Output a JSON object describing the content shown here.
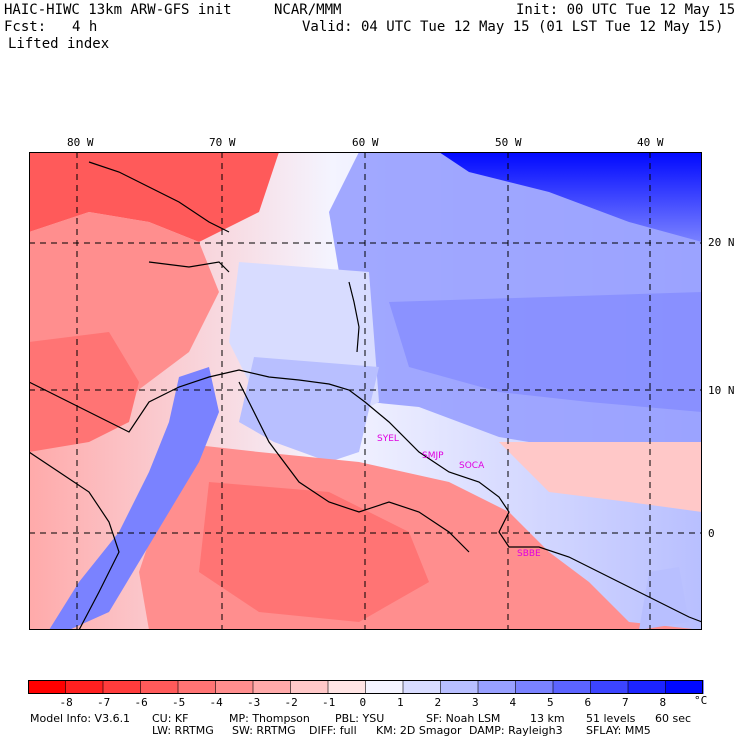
{
  "header": {
    "title": "HAIC-HIWC 13km ARW-GFS init",
    "org": "NCAR/MMM",
    "init": "Init: 00 UTC Tue 12 May 15",
    "fcst_label": "Fcst:",
    "fcst_value": "4 h",
    "valid": "Valid: 04 UTC Tue 12 May 15 (01 LST Tue 12 May 15)",
    "field": "Lifted index"
  },
  "map": {
    "lon_labels": [
      "80 W",
      "70 W",
      "60 W",
      "50 W",
      "40 W"
    ],
    "lat_labels": [
      "20 N",
      "10 N",
      "0"
    ],
    "stations": [
      "SYEL",
      "SMJP",
      "SOCA",
      "SBBE"
    ]
  },
  "colorbar": {
    "ticks": [
      "-8",
      "-7",
      "-6",
      "-5",
      "-4",
      "-3",
      "-2",
      "-1",
      "0",
      "1",
      "2",
      "3",
      "4",
      "5",
      "6",
      "7",
      "8"
    ],
    "unit": "°C",
    "colors": [
      "#ff0000",
      "#ff2020",
      "#ff3c3c",
      "#ff5a5a",
      "#ff7474",
      "#ff8e8e",
      "#ffaaaa",
      "#ffc8c8",
      "#ffe4e4",
      "#f4f4ff",
      "#d8dcff",
      "#b8bfff",
      "#98a0ff",
      "#7a82ff",
      "#5c64ff",
      "#3c44ff",
      "#1c24ff",
      "#0008ff"
    ]
  },
  "footer": {
    "line1": [
      "Model Info: V3.6.1",
      "CU: KF",
      "MP: Thompson",
      "PBL: YSU",
      "SF: Noah LSM",
      "13 km",
      "51 levels",
      "60 sec"
    ],
    "line2": [
      "LW: RRTMG",
      "SW: RRTMG",
      "DIFF: full",
      "KM: 2D Smagor",
      "DAMP: Rayleigh3",
      "SFLAY: MM5"
    ]
  }
}
